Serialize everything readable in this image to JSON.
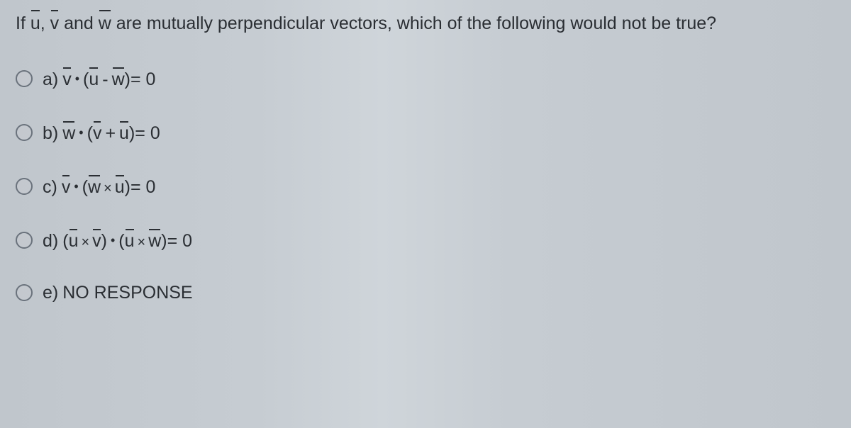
{
  "question_prefix": "If ",
  "question_mid1": ", ",
  "question_mid2": " and ",
  "question_suffix": " are mutually perpendicular vectors, which of the following would not be true?",
  "vectors": {
    "u": "u",
    "v": "v",
    "w": "w"
  },
  "ops": {
    "dot": "•",
    "cross": "×",
    "minus": "-",
    "plus": "+",
    "eq0": " = 0"
  },
  "paren": {
    "open": "(",
    "close": ")"
  },
  "options": {
    "a": {
      "letter": "a)"
    },
    "b": {
      "letter": "b)"
    },
    "c": {
      "letter": "c)"
    },
    "d": {
      "letter": "d)"
    },
    "e": {
      "letter": "e)",
      "label": "NO RESPONSE"
    }
  },
  "style": {
    "background": "#c4cad0",
    "text_color": "#2a2e33",
    "radio_border": "#6a727c",
    "question_fontsize": 25,
    "option_fontsize": 25,
    "row_gap": 44
  }
}
